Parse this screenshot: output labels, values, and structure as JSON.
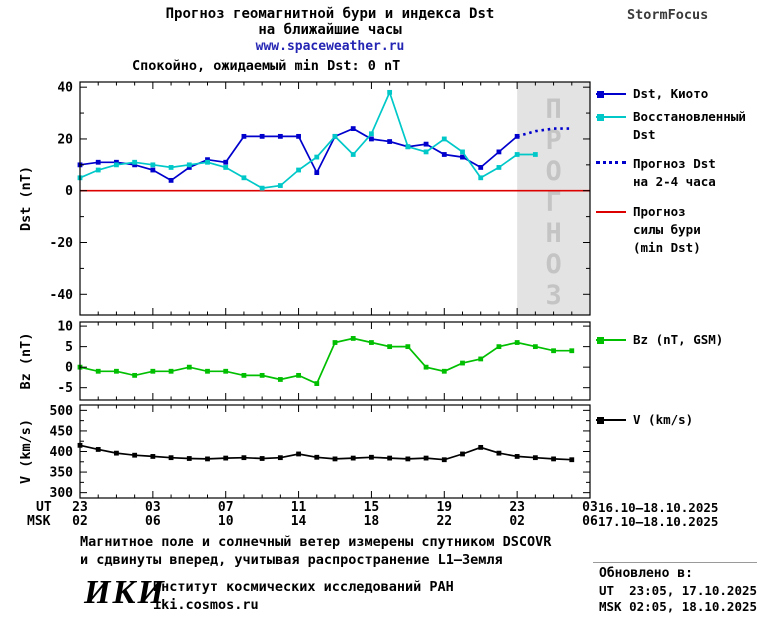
{
  "header": {
    "title_line1": "Прогноз геомагнитной бури и индекса Dst",
    "title_line2": "на ближайшие часы",
    "website": "www.spaceweather.ru",
    "brand": "StormFocus"
  },
  "status_banner": {
    "label": "Спокойно, ожидаемый min Dst: 0 nT",
    "color": "#0000ee"
  },
  "forecast_region": {
    "label": "ПРОГНОЗ",
    "bg": "#e3e3e3",
    "text_color": "#c4c4c4"
  },
  "legend": {
    "dst_kyoto": "Dst, Киото",
    "restored": "Восстановленный\nDst",
    "forecast_dst": "Прогноз Dst\nна 2-4 часа",
    "storm_force": "Прогноз\nсилы бури\n(min Dst)",
    "bz": "Bz (nT, GSM)",
    "v": "V (km/s)"
  },
  "xaxis": {
    "ut_label": "UT",
    "msk_label": "MSK",
    "ut_ticks": [
      "23",
      "03",
      "07",
      "11",
      "15",
      "19",
      "23",
      "03"
    ],
    "msk_ticks": [
      "02",
      "06",
      "10",
      "14",
      "18",
      "22",
      "02",
      "06"
    ],
    "ut_dates": "16.10–18.10.2025",
    "msk_dates": "17.10–18.10.2025"
  },
  "footnote": {
    "line1": "Магнитное поле и солнечный ветер измерены спутником DSCOVR",
    "line2": "и сдвинуты вперед, учитывая распространение L1–Земля"
  },
  "footer": {
    "logo": "ИКИ",
    "institute": "Институт космических исследований РАН",
    "site": "iki.cosmos.ru",
    "updated_label": "Обновлено в:",
    "updated_ut": "UT  23:05, 17.10.2025",
    "updated_msk": "MSK 02:05, 18.10.2025"
  },
  "chart_data": [
    {
      "id": "dst",
      "type": "line",
      "ylabel": "Dst (nT)",
      "ylim": [
        -48,
        42
      ],
      "yticks": [
        40,
        20,
        0,
        -20,
        -40
      ],
      "xlim_hours": [
        0,
        28
      ],
      "xtick_hours": [
        0,
        4,
        8,
        12,
        16,
        20,
        24,
        28
      ],
      "forecast_shade_hours": [
        24,
        28
      ],
      "ref_line": {
        "value": 0,
        "color": "#dd0000",
        "meaning": "Прогноз силы бури (min Dst): 0 nT"
      },
      "series": [
        {
          "id": "dst-kyoto",
          "name": "Dst, Киото",
          "color": "#0000cd",
          "marker": "square",
          "line": "solid",
          "x": [
            0,
            1,
            2,
            3,
            4,
            5,
            6,
            7,
            8,
            9,
            10,
            11,
            12,
            13,
            14,
            15,
            16,
            17,
            18,
            19,
            20,
            21,
            22,
            23,
            24
          ],
          "y": [
            10,
            11,
            11,
            10,
            8,
            4,
            9,
            12,
            11,
            21,
            21,
            21,
            21,
            7,
            21,
            24,
            20,
            19,
            17,
            18,
            14,
            13,
            9,
            15,
            21
          ]
        },
        {
          "id": "dst-restored",
          "name": "Восстановленный Dst",
          "color": "#00c8c8",
          "marker": "square",
          "line": "solid",
          "x": [
            0,
            1,
            2,
            3,
            4,
            5,
            6,
            7,
            8,
            9,
            10,
            11,
            12,
            13,
            14,
            15,
            16,
            17,
            18,
            19,
            20,
            21,
            22,
            23,
            24,
            25
          ],
          "y": [
            5,
            8,
            10,
            11,
            10,
            9,
            10,
            11,
            9,
            5,
            1,
            2,
            8,
            13,
            21,
            14,
            22,
            38,
            17,
            15,
            20,
            15,
            5,
            9,
            14,
            14
          ]
        },
        {
          "id": "dst-forecast",
          "name": "Прогноз Dst на 2-4 часа",
          "color": "#0000cd",
          "marker": "none",
          "line": "dotted",
          "x": [
            24,
            25,
            26,
            27
          ],
          "y": [
            21,
            23,
            24,
            24
          ]
        }
      ]
    },
    {
      "id": "bz",
      "type": "line",
      "ylabel": "Bz (nT)",
      "ylim": [
        -8,
        11
      ],
      "yticks": [
        10,
        5,
        0,
        -5
      ],
      "series": [
        {
          "id": "bz-gsm",
          "name": "Bz (nT, GSM)",
          "color": "#00bf00",
          "marker": "square",
          "line": "solid",
          "x": [
            0,
            1,
            2,
            3,
            4,
            5,
            6,
            7,
            8,
            9,
            10,
            11,
            12,
            13,
            14,
            15,
            16,
            17,
            18,
            19,
            20,
            21,
            22,
            23,
            24,
            25,
            26,
            27
          ],
          "y": [
            0,
            -1,
            -1,
            -2,
            -1,
            -1,
            0,
            -1,
            -1,
            -2,
            -2,
            -3,
            -2,
            -4,
            6,
            7,
            6,
            5,
            5,
            0,
            -1,
            1,
            2,
            5,
            6,
            5,
            4,
            4
          ]
        }
      ]
    },
    {
      "id": "v",
      "type": "line",
      "ylabel": "V (km/s)",
      "ylim": [
        287,
        513
      ],
      "yticks": [
        500,
        450,
        400,
        350,
        300
      ],
      "series": [
        {
          "id": "v-speed",
          "name": "V (km/s)",
          "color": "#000000",
          "marker": "square",
          "line": "solid",
          "x": [
            0,
            1,
            2,
            3,
            4,
            5,
            6,
            7,
            8,
            9,
            10,
            11,
            12,
            13,
            14,
            15,
            16,
            17,
            18,
            19,
            20,
            21,
            22,
            23,
            24,
            25,
            26,
            27
          ],
          "y": [
            415,
            405,
            396,
            391,
            388,
            385,
            383,
            382,
            384,
            385,
            383,
            385,
            394,
            386,
            382,
            384,
            386,
            384,
            382,
            384,
            380,
            394,
            410,
            396,
            388,
            385,
            382,
            380
          ]
        }
      ]
    }
  ]
}
